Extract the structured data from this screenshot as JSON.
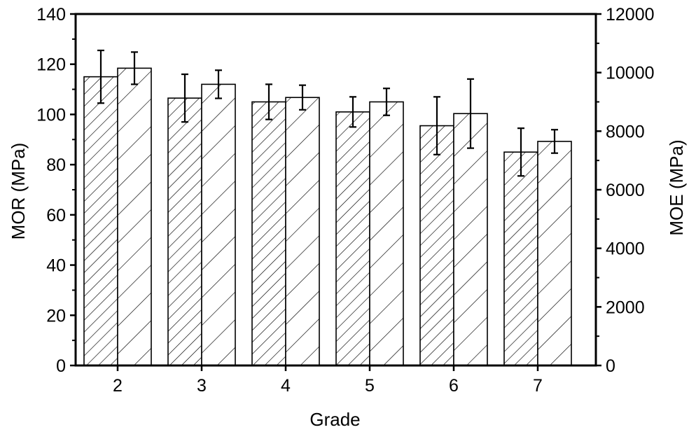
{
  "chart_data": {
    "type": "bar",
    "xlabel": "Grade",
    "ylabel_left": "MOR (MPa)",
    "ylabel_right": "MOE (MPa)",
    "categories": [
      "2",
      "3",
      "4",
      "5",
      "6",
      "7"
    ],
    "ylim_left": [
      0,
      140
    ],
    "ylim_right": [
      0,
      12000
    ],
    "yticks_left": [
      0,
      20,
      40,
      60,
      80,
      100,
      120,
      140
    ],
    "yticks_right": [
      0,
      2000,
      4000,
      6000,
      8000,
      10000,
      12000
    ],
    "grid": false,
    "legend": "none",
    "series": [
      {
        "axis": "left",
        "pattern": "dense-hatch",
        "values": [
          115,
          106.5,
          105,
          101,
          95.5,
          85
        ],
        "errors": [
          10.5,
          9.5,
          7,
          6,
          11.5,
          9.5
        ]
      },
      {
        "axis": "right",
        "pattern": "sparse-hatch",
        "values": [
          10150,
          9600,
          9150,
          9000,
          8600,
          7650
        ],
        "errors": [
          550,
          480,
          420,
          460,
          1180,
          400
        ]
      }
    ]
  }
}
